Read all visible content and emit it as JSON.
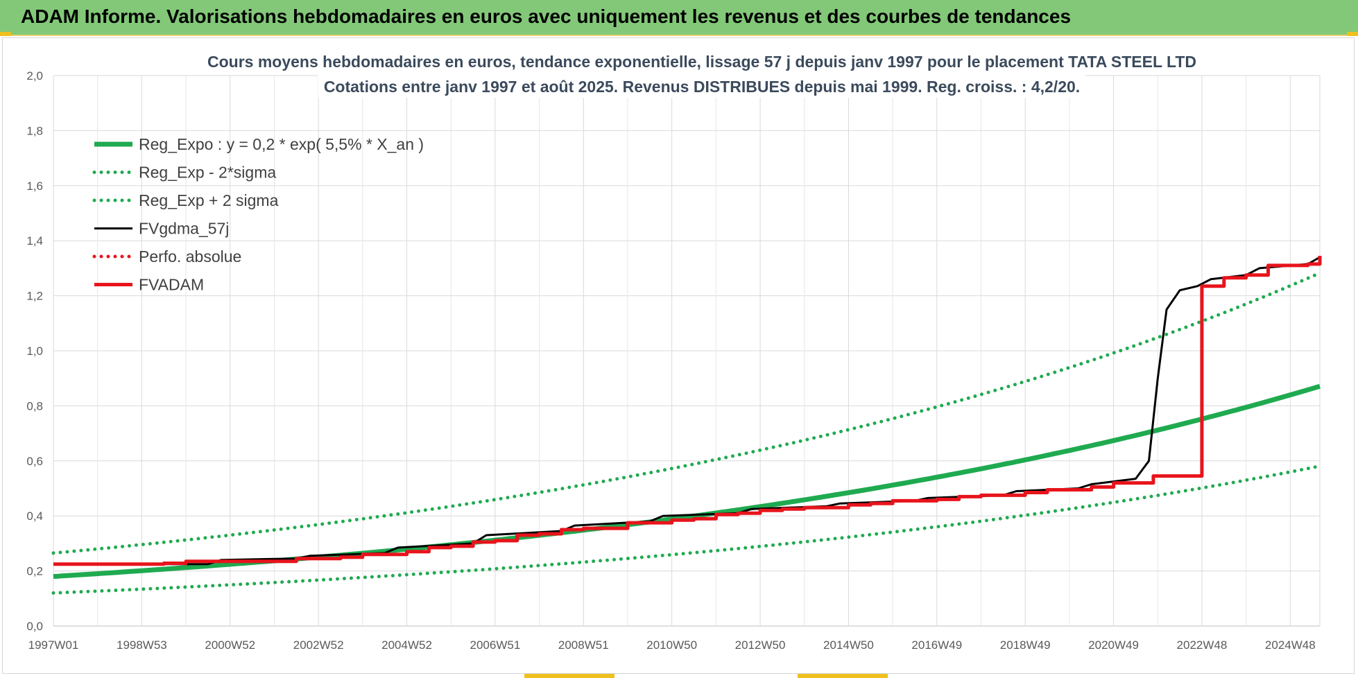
{
  "banner": {
    "title": "ADAM Informe. Valorisations hebdomadaires en euros avec uniquement les revenus et des courbes de tendances",
    "color": "#82c878"
  },
  "chart_data": {
    "type": "line",
    "title_lines": [
      "Cours moyens hebdomadaires en euros, tendance exponentielle, lissage 57 j depuis janv 1997  pour le placement TATA  STEEL LTD",
      "Cotations entre janv 1997 et août 2025.  Revenus DISTRIBUES depuis mai 1999. Reg. croiss. : 4,2/20."
    ],
    "xlabel": "",
    "ylabel": "",
    "ylim": [
      0,
      2
    ],
    "yticks": [
      "0,0",
      "0,2",
      "0,4",
      "0,6",
      "0,8",
      "1,0",
      "1,2",
      "1,4",
      "1,6",
      "1,8",
      "2,0"
    ],
    "xlim": [
      1997.0,
      2025.67
    ],
    "xtick_labels": [
      "1997W01",
      "1998W53",
      "2000W52",
      "2002W52",
      "2004W52",
      "2006W51",
      "2008W51",
      "2010W50",
      "2012W50",
      "2014W50",
      "2016W49",
      "2018W49",
      "2020W49",
      "2022W48",
      "2024W48"
    ],
    "grid": true,
    "legend_position": "top-left",
    "series": [
      {
        "name": "Reg_Expo : y = 0,2 * exp( 5,5% *  X_an )",
        "color": "#1faa50",
        "style": "solid-thick",
        "formula": {
          "a": 0.18,
          "rate": 0.055
        },
        "x": [
          1997,
          2001,
          2005,
          2009,
          2013,
          2017,
          2021,
          2025.67
        ],
        "y": [
          0.18,
          0.225,
          0.28,
          0.35,
          0.44,
          0.545,
          0.69,
          0.88
        ]
      },
      {
        "name": "Reg_Exp - 2*sigma",
        "color": "#1faa50",
        "style": "dotted",
        "formula": {
          "a": 0.12,
          "rate": 0.055
        },
        "x": [
          1997,
          2005,
          2013,
          2021,
          2025.67
        ],
        "y": [
          0.12,
          0.19,
          0.29,
          0.47,
          0.595
        ]
      },
      {
        "name": "Reg_Exp + 2 sigma",
        "color": "#1faa50",
        "style": "dotted",
        "formula": {
          "a": 0.265,
          "rate": 0.055
        },
        "x": [
          1997,
          2005,
          2013,
          2021,
          2025.67
        ],
        "y": [
          0.265,
          0.41,
          0.64,
          1.01,
          1.305
        ]
      },
      {
        "name": "FVgdma_57j",
        "color": "#000000",
        "style": "solid",
        "x": [
          1997.0,
          2000.5,
          2000.8,
          2002.5,
          2002.8,
          2004.5,
          2004.8,
          2006.5,
          2006.8,
          2008.5,
          2008.8,
          2010.5,
          2010.8,
          2012.5,
          2012.8,
          2014.5,
          2014.8,
          2016.5,
          2016.8,
          2018.5,
          2018.8,
          2020.2,
          2020.5,
          2021.5,
          2021.8,
          2022.0,
          2022.2,
          2022.5,
          2022.9,
          2023.2,
          2024.0,
          2024.3,
          2025.4,
          2025.67
        ],
        "y": [
          0.225,
          0.225,
          0.24,
          0.245,
          0.255,
          0.265,
          0.285,
          0.3,
          0.33,
          0.345,
          0.365,
          0.38,
          0.4,
          0.41,
          0.425,
          0.435,
          0.445,
          0.455,
          0.465,
          0.475,
          0.49,
          0.5,
          0.515,
          0.535,
          0.6,
          0.9,
          1.15,
          1.22,
          1.235,
          1.26,
          1.275,
          1.3,
          1.315,
          1.34
        ]
      },
      {
        "name": "Perfo. absolue",
        "color": "#e8141c",
        "style": "dotted",
        "x": [],
        "y": []
      },
      {
        "name": "FVADAM",
        "color": "#e8141c",
        "style": "step-thick",
        "x": [
          1997.0,
          1999.5,
          2000.0,
          2002.5,
          2003.5,
          2004.0,
          2005.0,
          2005.5,
          2006.0,
          2006.5,
          2007.0,
          2007.5,
          2008.0,
          2008.5,
          2009.0,
          2010.0,
          2011.0,
          2011.5,
          2012.0,
          2012.5,
          2013.0,
          2013.5,
          2014.0,
          2015.0,
          2015.5,
          2016.0,
          2017.0,
          2017.5,
          2018.0,
          2019.0,
          2019.5,
          2020.5,
          2021.0,
          2021.9,
          2023.0,
          2023.5,
          2024.0,
          2024.5,
          2025.4,
          2025.67
        ],
        "y": [
          0.225,
          0.228,
          0.235,
          0.245,
          0.25,
          0.26,
          0.27,
          0.285,
          0.29,
          0.305,
          0.31,
          0.33,
          0.335,
          0.35,
          0.355,
          0.375,
          0.385,
          0.39,
          0.405,
          0.41,
          0.42,
          0.425,
          0.43,
          0.44,
          0.445,
          0.455,
          0.46,
          0.47,
          0.475,
          0.485,
          0.495,
          0.505,
          0.52,
          0.545,
          1.235,
          1.265,
          1.275,
          1.31,
          1.315,
          1.345
        ]
      }
    ]
  }
}
